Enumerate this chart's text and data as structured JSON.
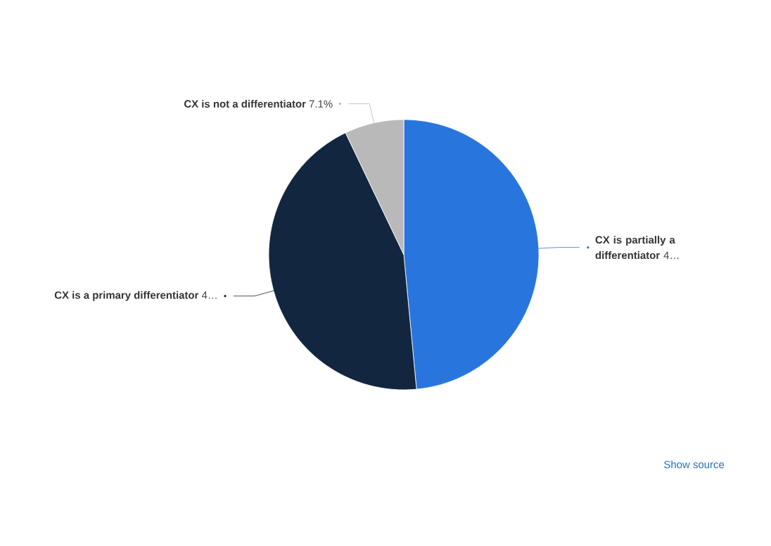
{
  "chart_data": {
    "type": "pie",
    "categories": [
      "CX is partially a differentiator",
      "CX is a primary differentiator",
      "CX is not a differentiator"
    ],
    "values": [
      48.5,
      44.4,
      7.1
    ],
    "colors": [
      "#2876dd",
      "#12263f",
      "#b9b9b9"
    ],
    "value_labels": [
      "4…",
      "4…",
      "7.1%"
    ],
    "annotations": [
      "Show source"
    ]
  }
}
